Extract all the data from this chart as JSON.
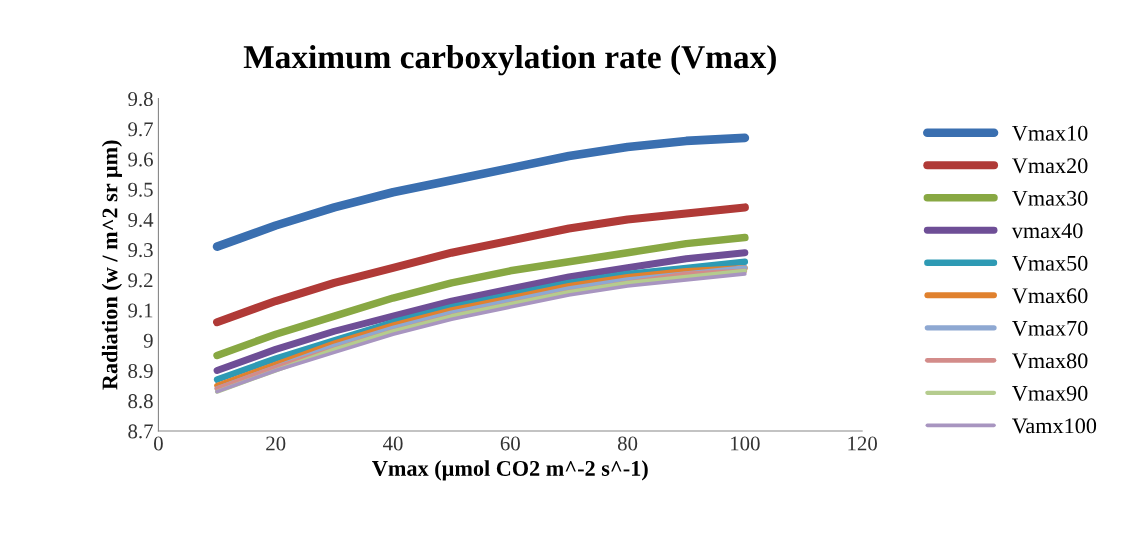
{
  "chart_data": {
    "type": "line",
    "title": "Maximum carboxylation rate (Vmax)",
    "xlabel": "Vmax (µmol CO2 m^-2 s^-1)",
    "ylabel": "Radiation (w / m^2 sr µm)",
    "x": [
      10,
      20,
      30,
      40,
      50,
      60,
      70,
      80,
      90,
      100
    ],
    "series": [
      {
        "name": "Vmax10",
        "color": "#3a6fb0",
        "values": [
          9.31,
          9.38,
          9.44,
          9.49,
          9.53,
          9.57,
          9.61,
          9.64,
          9.66,
          9.67
        ]
      },
      {
        "name": "Vmax20",
        "color": "#b03a37",
        "values": [
          9.06,
          9.13,
          9.19,
          9.24,
          9.29,
          9.33,
          9.37,
          9.4,
          9.42,
          9.44
        ]
      },
      {
        "name": "Vmax30",
        "color": "#88a843",
        "values": [
          8.95,
          9.02,
          9.08,
          9.14,
          9.19,
          9.23,
          9.26,
          9.29,
          9.32,
          9.34
        ]
      },
      {
        "name": "vmax40",
        "color": "#6e4e96",
        "values": [
          8.9,
          8.97,
          9.03,
          9.08,
          9.13,
          9.17,
          9.21,
          9.24,
          9.27,
          9.29
        ]
      },
      {
        "name": "Vmax50",
        "color": "#2e9ab4",
        "values": [
          8.87,
          8.94,
          9.0,
          9.06,
          9.11,
          9.15,
          9.19,
          9.22,
          9.24,
          9.26
        ]
      },
      {
        "name": "Vmax60",
        "color": "#e0812e",
        "values": [
          8.85,
          8.92,
          8.99,
          9.05,
          9.1,
          9.14,
          9.18,
          9.21,
          9.23,
          9.24
        ]
      },
      {
        "name": "Vmax70",
        "color": "#8ea8d2",
        "values": [
          8.84,
          8.91,
          8.98,
          9.04,
          9.09,
          9.13,
          9.17,
          9.2,
          9.22,
          9.24
        ]
      },
      {
        "name": "Vmax80",
        "color": "#d38c8a",
        "values": [
          8.84,
          8.91,
          8.97,
          9.03,
          9.08,
          9.12,
          9.16,
          9.19,
          9.22,
          9.23
        ]
      },
      {
        "name": "Vmax90",
        "color": "#b5cc8e",
        "values": [
          8.83,
          8.9,
          8.97,
          9.03,
          9.08,
          9.12,
          9.16,
          9.19,
          9.21,
          9.23
        ]
      },
      {
        "name": "Vamx100",
        "color": "#a895c0",
        "values": [
          8.83,
          8.9,
          8.96,
          9.02,
          9.07,
          9.11,
          9.15,
          9.18,
          9.2,
          9.22
        ]
      }
    ],
    "xlim": [
      0,
      120
    ],
    "xticks": [
      0,
      20,
      40,
      60,
      80,
      100,
      120
    ],
    "ylim": [
      8.7,
      9.8
    ],
    "yticks": [
      8.7,
      8.8,
      8.9,
      9,
      9.1,
      9.2,
      9.3,
      9.4,
      9.5,
      9.6,
      9.7,
      9.8
    ],
    "grid": false,
    "legend": "right",
    "marker": "none",
    "line_style": "solid"
  }
}
